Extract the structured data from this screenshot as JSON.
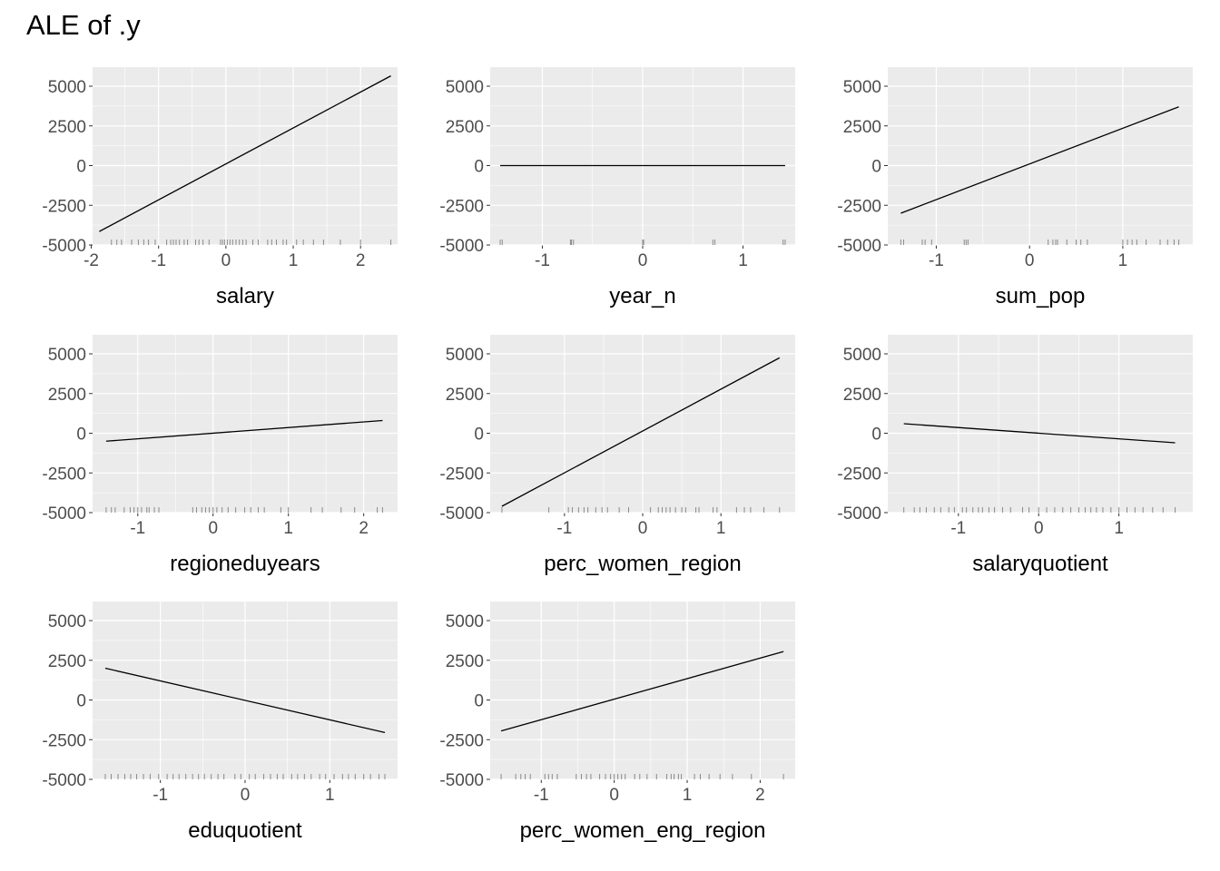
{
  "title": "ALE of .y",
  "chart_data": [
    {
      "type": "line",
      "xlabel": "salary",
      "xlim": [
        -1.98,
        2.55
      ],
      "xticks": [
        -2,
        -1,
        0,
        1,
        2
      ],
      "ylim": [
        -5000,
        6200
      ],
      "yticks": [
        -5000,
        -2500,
        0,
        2500,
        5000
      ],
      "x": [
        -1.88,
        2.45
      ],
      "y": [
        -4150,
        5650
      ],
      "rug": [
        -1.7,
        -1.62,
        -1.55,
        -1.4,
        -1.3,
        -1.22,
        -1.15,
        -1.05,
        -0.88,
        -0.82,
        -0.78,
        -0.74,
        -0.69,
        -0.62,
        -0.57,
        -0.45,
        -0.4,
        -0.34,
        -0.25,
        -0.08,
        -0.05,
        -0.02,
        0.02,
        0.06,
        0.1,
        0.15,
        0.2,
        0.25,
        0.3,
        0.4,
        0.48,
        0.62,
        0.68,
        0.75,
        0.85,
        0.9,
        1.05,
        1.15,
        1.3,
        1.45,
        1.7,
        2.0,
        2.45
      ]
    },
    {
      "type": "line",
      "xlabel": "year_n",
      "xlim": [
        -1.52,
        1.52
      ],
      "xticks": [
        -1,
        0,
        1
      ],
      "ylim": [
        -5000,
        6200
      ],
      "yticks": [
        -5000,
        -2500,
        0,
        2500,
        5000
      ],
      "x": [
        -1.42,
        1.42
      ],
      "y": [
        0,
        0
      ],
      "rug": [
        -1.42,
        -1.4,
        -0.72,
        -0.71,
        -0.69,
        0.0,
        0.01,
        0.7,
        0.72,
        1.4,
        1.42
      ]
    },
    {
      "type": "line",
      "xlabel": "sum_pop",
      "xlim": [
        -1.52,
        1.75
      ],
      "xticks": [
        -1,
        0,
        1
      ],
      "ylim": [
        -5000,
        6200
      ],
      "yticks": [
        -5000,
        -2500,
        0,
        2500,
        5000
      ],
      "x": [
        -1.38,
        1.6
      ],
      "y": [
        -3000,
        3700
      ],
      "rug": [
        -1.38,
        -1.35,
        -1.15,
        -1.12,
        -1.05,
        -0.7,
        -0.68,
        -0.66,
        0.2,
        0.25,
        0.28,
        0.3,
        0.4,
        0.5,
        0.55,
        0.62,
        1.0,
        1.05,
        1.1,
        1.15,
        1.25,
        1.4,
        1.48,
        1.55,
        1.6
      ]
    },
    {
      "type": "line",
      "xlabel": "regioneduyears",
      "xlim": [
        -1.6,
        2.45
      ],
      "xticks": [
        -1,
        0,
        1,
        2
      ],
      "ylim": [
        -5000,
        6200
      ],
      "yticks": [
        -5000,
        -2500,
        0,
        2500,
        5000
      ],
      "x": [
        -1.42,
        2.25
      ],
      "y": [
        -500,
        800
      ],
      "rug": [
        -1.42,
        -1.35,
        -1.3,
        -1.18,
        -1.1,
        -1.05,
        -1.0,
        -0.95,
        -0.88,
        -0.85,
        -0.78,
        -0.72,
        -0.27,
        -0.22,
        -0.15,
        -0.1,
        -0.05,
        0.0,
        0.05,
        0.12,
        0.2,
        0.3,
        0.42,
        0.5,
        0.6,
        0.68,
        0.9,
        1.0,
        1.3,
        1.45,
        1.7,
        1.88,
        2.18,
        2.25
      ]
    },
    {
      "type": "line",
      "xlabel": "perc_women_region",
      "xlim": [
        -1.95,
        1.95
      ],
      "xticks": [
        -1,
        0,
        1
      ],
      "ylim": [
        -5000,
        6200
      ],
      "yticks": [
        -5000,
        -2500,
        0,
        2500,
        5000
      ],
      "x": [
        -1.8,
        1.75
      ],
      "y": [
        -4600,
        4750
      ],
      "rug": [
        -1.8,
        -1.2,
        -0.95,
        -0.9,
        -0.82,
        -0.75,
        -0.7,
        -0.6,
        -0.52,
        -0.45,
        -0.3,
        -0.18,
        0.1,
        0.2,
        0.25,
        0.3,
        0.35,
        0.42,
        0.5,
        0.55,
        0.68,
        0.72,
        0.9,
        0.95,
        1.2,
        1.3,
        1.38,
        1.55,
        1.75
      ]
    },
    {
      "type": "line",
      "xlabel": "salaryquotient",
      "xlim": [
        -1.88,
        1.92
      ],
      "xticks": [
        -1,
        0,
        1
      ],
      "ylim": [
        -5000,
        6200
      ],
      "yticks": [
        -5000,
        -2500,
        0,
        2500,
        5000
      ],
      "x": [
        -1.68,
        1.7
      ],
      "y": [
        600,
        -600
      ],
      "rug": [
        -1.68,
        -1.55,
        -1.48,
        -1.4,
        -1.3,
        -1.22,
        -1.12,
        -1.05,
        -0.95,
        -0.9,
        -0.82,
        -0.75,
        -0.7,
        -0.62,
        -0.55,
        -0.45,
        -0.35,
        -0.2,
        -0.12,
        0.0,
        0.1,
        0.2,
        0.3,
        0.4,
        0.5,
        0.58,
        0.65,
        0.72,
        0.8,
        0.9,
        1.0,
        1.1,
        1.2,
        1.3,
        1.42,
        1.55,
        1.7
      ]
    },
    {
      "type": "line",
      "xlabel": "eduquotient",
      "xlim": [
        -1.8,
        1.8
      ],
      "xticks": [
        -1,
        0,
        1
      ],
      "ylim": [
        -5000,
        6200
      ],
      "yticks": [
        -5000,
        -2500,
        0,
        2500,
        5000
      ],
      "x": [
        -1.65,
        1.65
      ],
      "y": [
        2000,
        -2050
      ],
      "rug": [
        -1.65,
        -1.58,
        -1.5,
        -1.42,
        -1.35,
        -1.28,
        -1.2,
        -1.12,
        -1.02,
        -0.92,
        -0.85,
        -0.78,
        -0.7,
        -0.62,
        -0.55,
        -0.48,
        -0.4,
        -0.32,
        -0.25,
        -0.12,
        -0.05,
        0.05,
        0.12,
        0.22,
        0.3,
        0.38,
        0.45,
        0.55,
        0.62,
        0.7,
        0.78,
        0.88,
        0.95,
        1.05,
        1.15,
        1.22,
        1.3,
        1.4,
        1.48,
        1.58,
        1.65
      ]
    },
    {
      "type": "line",
      "xlabel": "perc_women_eng_region",
      "xlim": [
        -1.7,
        2.48
      ],
      "xticks": [
        -1,
        0,
        1,
        2
      ],
      "ylim": [
        -5000,
        6200
      ],
      "yticks": [
        -5000,
        -2500,
        0,
        2500,
        5000
      ],
      "x": [
        -1.55,
        2.32
      ],
      "y": [
        -1950,
        3050
      ],
      "rug": [
        -1.55,
        -1.35,
        -1.28,
        -1.22,
        -1.15,
        -0.95,
        -0.9,
        -0.85,
        -0.78,
        -0.52,
        -0.45,
        -0.38,
        -0.32,
        -0.2,
        -0.12,
        -0.05,
        0.0,
        0.05,
        0.1,
        0.15,
        0.28,
        0.35,
        0.45,
        0.58,
        0.72,
        0.78,
        0.82,
        0.88,
        0.92,
        1.1,
        1.18,
        1.3,
        1.45,
        1.62,
        1.88,
        2.32
      ]
    }
  ]
}
